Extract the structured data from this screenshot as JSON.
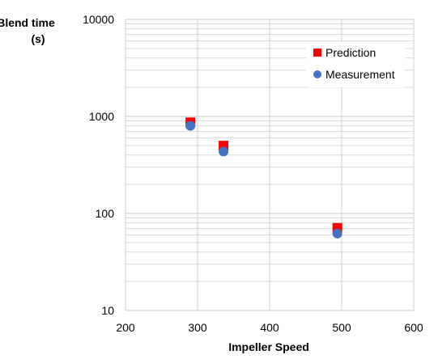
{
  "chart_data": {
    "type": "scatter",
    "xlabel": "Impeller Speed",
    "ylabel_lines": [
      "Blend time",
      "(s)"
    ],
    "xlim": [
      200,
      600
    ],
    "ylim": [
      10,
      10000
    ],
    "yscale": "log",
    "x_ticks": [
      "200",
      "300",
      "400",
      "500",
      "600"
    ],
    "y_ticks": [
      "10",
      "100",
      "1000",
      "10000"
    ],
    "grid": true,
    "legend_position": "top-right",
    "series": [
      {
        "name": "Prediction",
        "marker": "square",
        "color": "#ff0000",
        "points": [
          [
            290,
            870
          ],
          [
            336,
            500
          ],
          [
            494,
            71
          ]
        ]
      },
      {
        "name": "Measurement",
        "marker": "circle",
        "color": "#4472c4",
        "points": [
          [
            290,
            800
          ],
          [
            336,
            435
          ],
          [
            494,
            62
          ]
        ]
      }
    ]
  }
}
